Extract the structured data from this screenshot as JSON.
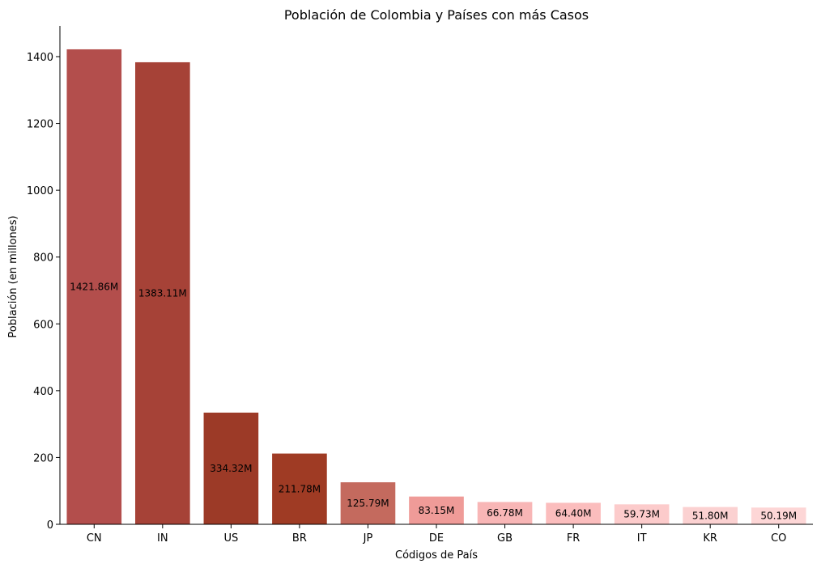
{
  "chart_data": {
    "type": "bar",
    "title": "Población de Colombia y Países con más Casos",
    "xlabel": "Códigos de País",
    "ylabel": "Población (en millones)",
    "categories": [
      "CN",
      "IN",
      "US",
      "BR",
      "JP",
      "DE",
      "GB",
      "FR",
      "IT",
      "KR",
      "CO"
    ],
    "values": [
      1421.86,
      1383.11,
      334.32,
      211.78,
      125.79,
      83.15,
      66.78,
      64.4,
      59.73,
      51.8,
      50.19
    ],
    "data_labels": [
      "1421.86M",
      "1383.11M",
      "334.32M",
      "211.78M",
      "125.79M",
      "83.15M",
      "66.78M",
      "64.40M",
      "59.73M",
      "51.80M",
      "50.19M"
    ],
    "colors": [
      "#b34e4c",
      "#a64237",
      "#9c3a27",
      "#9f3b24",
      "#c46a5e",
      "#ef9b98",
      "#f8b6b6",
      "#fbbdbd",
      "#fccbcb",
      "#fbd1d1",
      "#fdd6d6"
    ],
    "ylim": [
      0,
      1492
    ],
    "yticks": [
      0,
      200,
      400,
      600,
      800,
      1000,
      1200,
      1400
    ],
    "grid": false,
    "legend": "none"
  }
}
